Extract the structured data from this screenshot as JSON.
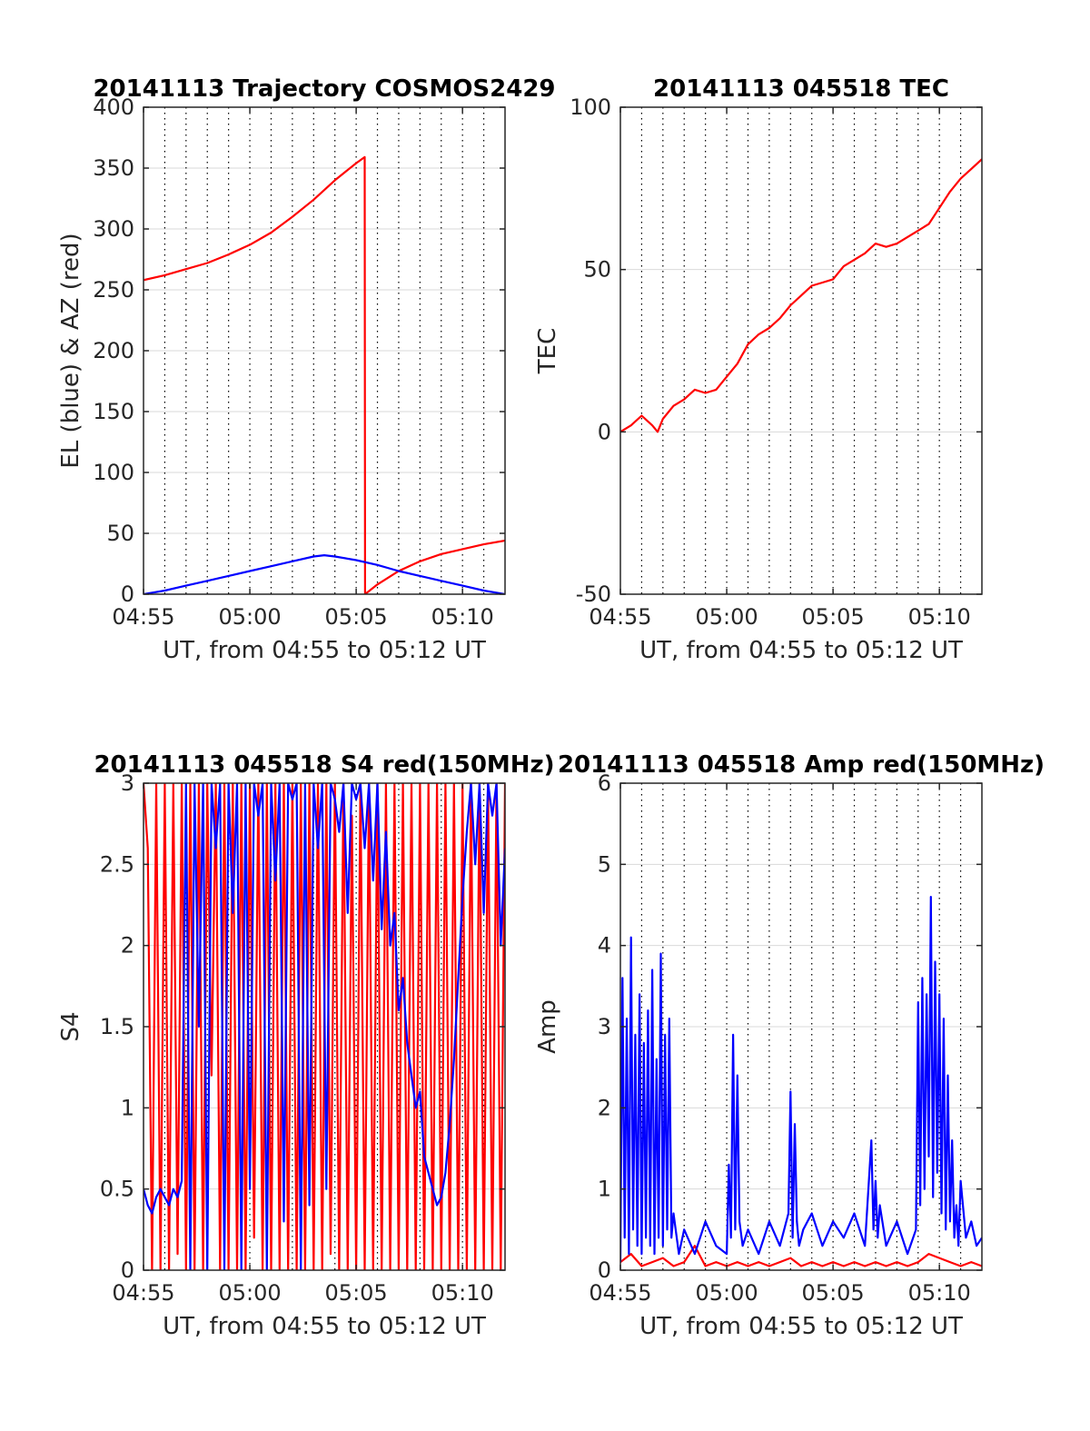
{
  "colors": {
    "red": "#ff0000",
    "blue": "#0000ff",
    "axis": "#262626",
    "grid": "#d9d9d9",
    "vgrid": "#000000"
  },
  "chart_data": [
    {
      "id": "trajectory",
      "type": "line",
      "title": "20141113 Trajectory COSMOS2429",
      "xlabel": "UT, from 04:55 to 05:12 UT",
      "ylabel": "EL (blue) & AZ (red)",
      "xlim": [
        "04:55",
        "05:12"
      ],
      "ylim": [
        0,
        400
      ],
      "xticks": [
        "04:55",
        "05:00",
        "05:05",
        "05:10"
      ],
      "yticks": [
        0,
        50,
        100,
        150,
        200,
        250,
        300,
        350,
        400
      ],
      "grid": "horizontal solid, vertical dotted every minute",
      "series": [
        {
          "color": "red",
          "x": [
            "04:55",
            "04:56",
            "04:57",
            "04:58",
            "04:59",
            "05:00",
            "05:01",
            "05:02",
            "05:03",
            "05:04",
            "05:05",
            "05:05:24",
            "05:05:25",
            "05:06",
            "05:07",
            "05:08",
            "05:09",
            "05:10",
            "05:11",
            "05:12"
          ],
          "values": [
            258,
            262,
            267,
            272,
            279,
            287,
            297,
            310,
            324,
            340,
            354,
            359,
            0,
            8,
            19,
            27,
            33,
            37,
            41,
            44
          ]
        },
        {
          "color": "blue",
          "x": [
            "04:55",
            "04:56",
            "04:57",
            "04:58",
            "04:59",
            "05:00",
            "05:01",
            "05:02",
            "05:03",
            "05:03:30",
            "05:04",
            "05:05",
            "05:06",
            "05:07",
            "05:08",
            "05:09",
            "05:10",
            "05:11",
            "05:12"
          ],
          "values": [
            0,
            3,
            7,
            11,
            15,
            19,
            23,
            27,
            31,
            32,
            31,
            28,
            24,
            19,
            15,
            11,
            7,
            3,
            0
          ]
        }
      ]
    },
    {
      "id": "tec",
      "type": "line",
      "title": "20141113 045518 TEC",
      "xlabel": "UT, from 04:55 to 05:12 UT",
      "ylabel": "TEC",
      "xlim": [
        "04:55",
        "05:12"
      ],
      "ylim": [
        -50,
        100
      ],
      "xticks": [
        "04:55",
        "05:00",
        "05:05",
        "05:10"
      ],
      "yticks": [
        -50,
        0,
        50,
        100
      ],
      "grid": "horizontal solid, vertical dotted every minute",
      "series": [
        {
          "color": "red",
          "x": [
            "04:55",
            "04:55:30",
            "04:56",
            "04:56:30",
            "04:56:45",
            "04:57",
            "04:57:30",
            "04:58",
            "04:58:30",
            "04:59",
            "04:59:30",
            "05:00",
            "05:00:30",
            "05:01",
            "05:01:30",
            "05:02",
            "05:02:30",
            "05:03",
            "05:03:30",
            "05:04",
            "05:04:30",
            "05:05",
            "05:05:30",
            "05:06",
            "05:06:30",
            "05:07",
            "05:07:30",
            "05:08",
            "05:08:30",
            "05:09",
            "05:09:30",
            "05:10",
            "05:10:30",
            "05:11",
            "05:11:30",
            "05:12"
          ],
          "values": [
            0,
            2,
            5,
            2,
            0,
            4,
            8,
            10,
            13,
            12,
            13,
            17,
            21,
            27,
            30,
            32,
            35,
            39,
            42,
            45,
            46,
            47,
            51,
            53,
            55,
            58,
            57,
            58,
            60,
            62,
            64,
            69,
            74,
            78,
            81,
            84
          ]
        }
      ]
    },
    {
      "id": "s4",
      "type": "line",
      "title": "20141113 045518 S4 red(150MHz)",
      "xlabel": "UT, from 04:55 to 05:12 UT",
      "ylabel": "S4",
      "xlim": [
        "04:55",
        "05:12"
      ],
      "ylim": [
        0,
        3
      ],
      "xticks": [
        "04:55",
        "05:00",
        "05:05",
        "05:10"
      ],
      "yticks": [
        0,
        0.5,
        1,
        1.5,
        2,
        2.5,
        3
      ],
      "grid": "horizontal solid, vertical dotted every minute",
      "series": [
        {
          "color": "red",
          "x": [
            "04:55",
            "04:55:12",
            "04:55:24",
            "04:55:36",
            "04:55:48",
            "04:56",
            "04:56:12",
            "04:56:24",
            "04:56:36",
            "04:56:48",
            "04:57",
            "04:57:12",
            "04:57:24",
            "04:57:36",
            "04:57:48",
            "04:58",
            "04:58:12",
            "04:58:24",
            "04:58:36",
            "04:58:48",
            "04:59",
            "04:59:12",
            "04:59:24",
            "04:59:36",
            "04:59:48",
            "05:00",
            "05:00:12",
            "05:00:24",
            "05:00:36",
            "05:00:48",
            "05:01",
            "05:01:12",
            "05:01:24",
            "05:01:36",
            "05:01:48",
            "05:02",
            "05:02:12",
            "05:02:24",
            "05:02:36",
            "05:02:48",
            "05:03",
            "05:03:12",
            "05:03:24",
            "05:03:36",
            "05:03:48",
            "05:04",
            "05:04:12",
            "05:04:24",
            "05:04:36",
            "05:04:48",
            "05:05",
            "05:05:12",
            "05:05:24",
            "05:05:36",
            "05:05:48",
            "05:06",
            "05:06:12",
            "05:06:24",
            "05:06:36",
            "05:06:48",
            "05:07",
            "05:07:12",
            "05:07:24",
            "05:07:36",
            "05:07:48",
            "05:08",
            "05:08:12",
            "05:08:24",
            "05:08:36",
            "05:08:48",
            "05:09",
            "05:09:12",
            "05:09:24",
            "05:09:36",
            "05:09:48",
            "05:10",
            "05:10:12",
            "05:10:24",
            "05:10:36",
            "05:10:48",
            "05:11",
            "05:11:12",
            "05:11:24",
            "05:11:36",
            "05:11:48",
            "05:12"
          ],
          "values": [
            3,
            2.6,
            0,
            3,
            0,
            3,
            0,
            3,
            0.1,
            3,
            0,
            3,
            0,
            3,
            0,
            3,
            1.2,
            3,
            0,
            3,
            0,
            3,
            0,
            3,
            0,
            3,
            0.2,
            3,
            0,
            3,
            0,
            3,
            0,
            3,
            0,
            3,
            0,
            3,
            0,
            3,
            0,
            3,
            0,
            3,
            0.1,
            3,
            0,
            3,
            0,
            2.8,
            0,
            3,
            0,
            3,
            0,
            3,
            0,
            3,
            0,
            3,
            0,
            3,
            0,
            3,
            0,
            3,
            0,
            3,
            0,
            3,
            0,
            3,
            0,
            3,
            0,
            3,
            0,
            3,
            0,
            3,
            0,
            3,
            0,
            3,
            0,
            3
          ]
        },
        {
          "color": "blue",
          "x": [
            "04:55",
            "04:55:12",
            "04:55:24",
            "04:55:36",
            "04:55:48",
            "04:56",
            "04:56:12",
            "04:56:24",
            "04:56:36",
            "04:56:48",
            "04:57",
            "04:57:12",
            "04:57:24",
            "04:57:36",
            "04:57:48",
            "04:58",
            "04:58:12",
            "04:58:24",
            "04:58:36",
            "04:58:48",
            "04:59",
            "04:59:12",
            "04:59:24",
            "04:59:36",
            "04:59:48",
            "05:00",
            "05:00:12",
            "05:00:24",
            "05:00:36",
            "05:00:48",
            "05:01",
            "05:01:12",
            "05:01:24",
            "05:01:36",
            "05:01:48",
            "05:02",
            "05:02:12",
            "05:02:24",
            "05:02:36",
            "05:02:48",
            "05:03",
            "05:03:12",
            "05:03:24",
            "05:03:36",
            "05:03:48",
            "05:04",
            "05:04:12",
            "05:04:24",
            "05:04:36",
            "05:04:48",
            "05:05",
            "05:05:12",
            "05:05:24",
            "05:05:36",
            "05:05:48",
            "05:06",
            "05:06:12",
            "05:06:24",
            "05:06:36",
            "05:06:48",
            "05:07",
            "05:07:12",
            "05:07:24",
            "05:07:36",
            "05:07:48",
            "05:08",
            "05:08:12",
            "05:08:24",
            "05:08:36",
            "05:08:48",
            "05:09",
            "05:09:12",
            "05:09:24",
            "05:09:36",
            "05:09:48",
            "05:10",
            "05:10:12",
            "05:10:24",
            "05:10:36",
            "05:10:48",
            "05:11",
            "05:11:12",
            "05:11:24",
            "05:11:36",
            "05:11:48",
            "05:12"
          ],
          "values": [
            0.5,
            0.4,
            0.35,
            0.45,
            0.5,
            0.45,
            0.4,
            0.5,
            0.45,
            0.55,
            3,
            0,
            3,
            1.5,
            3,
            0,
            3,
            2.6,
            3,
            0,
            3,
            2.2,
            3,
            0,
            3,
            0.5,
            3,
            2.8,
            3,
            0,
            3,
            2.4,
            3,
            0.3,
            3,
            2.9,
            3,
            0,
            3,
            0.4,
            3,
            2.6,
            3,
            0.5,
            3,
            2.9,
            2.7,
            3,
            2.2,
            3,
            2.9,
            3,
            2.6,
            3,
            2.4,
            3,
            2.1,
            2.7,
            2,
            2.2,
            1.6,
            1.8,
            1.4,
            1.2,
            1,
            1.1,
            0.7,
            0.6,
            0.5,
            0.4,
            0.45,
            0.6,
            0.9,
            1.3,
            1.8,
            2.3,
            2.7,
            3,
            2.5,
            3,
            2.2,
            3,
            2.8,
            3,
            2,
            2.6
          ]
        }
      ]
    },
    {
      "id": "amp",
      "type": "line",
      "title": "20141113 045518 Amp red(150MHz)",
      "xlabel": "UT, from 04:55 to 05:12 UT",
      "ylabel": "Amp",
      "xlim": [
        "04:55",
        "05:12"
      ],
      "ylim": [
        0,
        6
      ],
      "xticks": [
        "04:55",
        "05:00",
        "05:05",
        "05:10"
      ],
      "yticks": [
        0,
        1,
        2,
        3,
        4,
        5,
        6
      ],
      "grid": "horizontal solid, vertical dotted every minute",
      "series": [
        {
          "color": "red",
          "x": [
            "04:55",
            "04:55:30",
            "04:56",
            "04:56:30",
            "04:57",
            "04:57:30",
            "04:58",
            "04:58:30",
            "04:59",
            "04:59:30",
            "05:00",
            "05:00:30",
            "05:01",
            "05:01:30",
            "05:02",
            "05:02:30",
            "05:03",
            "05:03:30",
            "05:04",
            "05:04:30",
            "05:05",
            "05:05:30",
            "05:06",
            "05:06:30",
            "05:07",
            "05:07:30",
            "05:08",
            "05:08:30",
            "05:09",
            "05:09:30",
            "05:10",
            "05:10:30",
            "05:11",
            "05:11:30",
            "05:12"
          ],
          "values": [
            0.1,
            0.2,
            0.05,
            0.1,
            0.15,
            0.05,
            0.1,
            0.3,
            0.05,
            0.1,
            0.05,
            0.1,
            0.05,
            0.1,
            0.05,
            0.1,
            0.15,
            0.05,
            0.1,
            0.05,
            0.1,
            0.05,
            0.1,
            0.05,
            0.1,
            0.05,
            0.1,
            0.05,
            0.1,
            0.2,
            0.15,
            0.1,
            0.05,
            0.1,
            0.05
          ]
        },
        {
          "color": "blue",
          "x": [
            "04:55",
            "04:55:06",
            "04:55:12",
            "04:55:18",
            "04:55:24",
            "04:55:30",
            "04:55:36",
            "04:55:42",
            "04:55:48",
            "04:55:54",
            "04:56",
            "04:56:06",
            "04:56:12",
            "04:56:18",
            "04:56:24",
            "04:56:30",
            "04:56:36",
            "04:56:42",
            "04:56:48",
            "04:56:54",
            "04:57",
            "04:57:06",
            "04:57:12",
            "04:57:18",
            "04:57:24",
            "04:57:30",
            "04:57:45",
            "04:58",
            "04:58:30",
            "04:59",
            "04:59:30",
            "05:00",
            "05:00:06",
            "05:00:12",
            "05:00:18",
            "05:00:24",
            "05:00:30",
            "05:00:36",
            "05:00:45",
            "05:01",
            "05:01:30",
            "05:02",
            "05:02:30",
            "05:02:54",
            "05:03",
            "05:03:06",
            "05:03:12",
            "05:03:18",
            "05:03:24",
            "05:03:36",
            "05:04",
            "05:04:30",
            "05:05",
            "05:05:30",
            "05:06",
            "05:06:30",
            "05:06:48",
            "05:06:54",
            "05:07",
            "05:07:06",
            "05:07:12",
            "05:07:30",
            "05:08",
            "05:08:30",
            "05:08:54",
            "05:09",
            "05:09:06",
            "05:09:12",
            "05:09:18",
            "05:09:24",
            "05:09:30",
            "05:09:36",
            "05:09:42",
            "05:09:48",
            "05:09:54",
            "05:10",
            "05:10:06",
            "05:10:12",
            "05:10:18",
            "05:10:24",
            "05:10:30",
            "05:10:36",
            "05:10:42",
            "05:10:48",
            "05:10:54",
            "05:11",
            "05:11:15",
            "05:11:30",
            "05:11:45",
            "05:12"
          ],
          "values": [
            0.1,
            3.6,
            0.4,
            3.1,
            0.2,
            4.1,
            0.5,
            2.9,
            0.3,
            3.4,
            0.2,
            2.8,
            0.4,
            3.2,
            0.3,
            3.7,
            0.2,
            2.6,
            0.4,
            3.9,
            0.3,
            2.9,
            0.5,
            3.1,
            0.4,
            0.7,
            0.2,
            0.5,
            0.2,
            0.6,
            0.3,
            0.2,
            1.3,
            0.4,
            2.9,
            0.5,
            2.4,
            0.6,
            0.3,
            0.5,
            0.2,
            0.6,
            0.3,
            0.7,
            2.2,
            0.4,
            1.8,
            0.6,
            0.3,
            0.5,
            0.7,
            0.3,
            0.6,
            0.4,
            0.7,
            0.3,
            1.6,
            0.5,
            1.1,
            0.4,
            0.8,
            0.3,
            0.6,
            0.2,
            0.5,
            3.3,
            0.8,
            3.6,
            1,
            3.4,
            1.4,
            4.6,
            0.9,
            3.8,
            1.2,
            3.4,
            0.7,
            3.1,
            0.5,
            2.4,
            0.6,
            1.6,
            0.4,
            0.8,
            0.3,
            1.1,
            0.4,
            0.6,
            0.3,
            0.4
          ]
        }
      ]
    }
  ]
}
